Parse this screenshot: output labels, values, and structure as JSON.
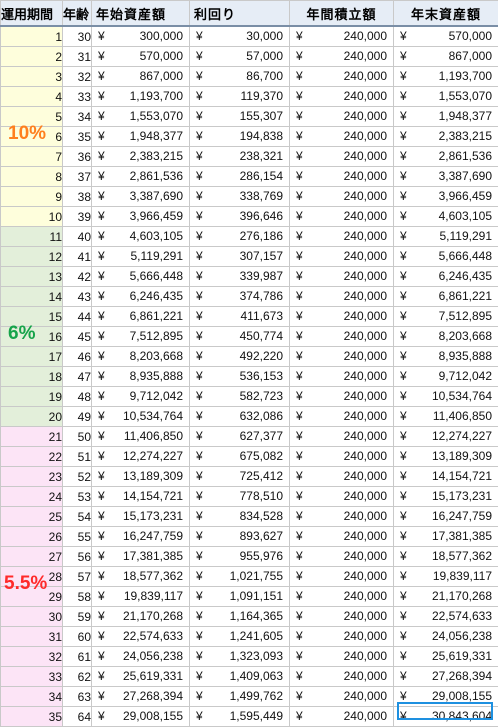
{
  "header": {
    "col_period": "運用期間",
    "col_age": "年齢",
    "col_start_assets": "年始資産額",
    "col_return": "利回り",
    "col_annual_contribution": "年間積立額",
    "col_end_assets": "年末資産額"
  },
  "currency_symbol": "¥",
  "bands": [
    {
      "label": "10%",
      "color": "#ff7f1e",
      "background": "#fefedc",
      "from_row": 1,
      "to_row": 10
    },
    {
      "label": "6%",
      "color": "#16a34a",
      "background": "#e3efda",
      "from_row": 11,
      "to_row": 20
    },
    {
      "label": "5.5%",
      "color": "#ff2a2a",
      "background": "#fce4f6",
      "from_row": 21,
      "to_row": 35
    }
  ],
  "rows": [
    {
      "period": "1",
      "age": "30",
      "start": "300,000",
      "ret": "30,000",
      "contrib": "240,000",
      "end": "570,000"
    },
    {
      "period": "2",
      "age": "31",
      "start": "570,000",
      "ret": "57,000",
      "contrib": "240,000",
      "end": "867,000"
    },
    {
      "period": "3",
      "age": "32",
      "start": "867,000",
      "ret": "86,700",
      "contrib": "240,000",
      "end": "1,193,700"
    },
    {
      "period": "4",
      "age": "33",
      "start": "1,193,700",
      "ret": "119,370",
      "contrib": "240,000",
      "end": "1,553,070"
    },
    {
      "period": "5",
      "age": "34",
      "start": "1,553,070",
      "ret": "155,307",
      "contrib": "240,000",
      "end": "1,948,377"
    },
    {
      "period": "6",
      "age": "35",
      "start": "1,948,377",
      "ret": "194,838",
      "contrib": "240,000",
      "end": "2,383,215"
    },
    {
      "period": "7",
      "age": "36",
      "start": "2,383,215",
      "ret": "238,321",
      "contrib": "240,000",
      "end": "2,861,536"
    },
    {
      "period": "8",
      "age": "37",
      "start": "2,861,536",
      "ret": "286,154",
      "contrib": "240,000",
      "end": "3,387,690"
    },
    {
      "period": "9",
      "age": "38",
      "start": "3,387,690",
      "ret": "338,769",
      "contrib": "240,000",
      "end": "3,966,459"
    },
    {
      "period": "10",
      "age": "39",
      "start": "3,966,459",
      "ret": "396,646",
      "contrib": "240,000",
      "end": "4,603,105"
    },
    {
      "period": "11",
      "age": "40",
      "start": "4,603,105",
      "ret": "276,186",
      "contrib": "240,000",
      "end": "5,119,291"
    },
    {
      "period": "12",
      "age": "41",
      "start": "5,119,291",
      "ret": "307,157",
      "contrib": "240,000",
      "end": "5,666,448"
    },
    {
      "period": "13",
      "age": "42",
      "start": "5,666,448",
      "ret": "339,987",
      "contrib": "240,000",
      "end": "6,246,435"
    },
    {
      "period": "14",
      "age": "43",
      "start": "6,246,435",
      "ret": "374,786",
      "contrib": "240,000",
      "end": "6,861,221"
    },
    {
      "period": "15",
      "age": "44",
      "start": "6,861,221",
      "ret": "411,673",
      "contrib": "240,000",
      "end": "7,512,895"
    },
    {
      "period": "16",
      "age": "45",
      "start": "7,512,895",
      "ret": "450,774",
      "contrib": "240,000",
      "end": "8,203,668"
    },
    {
      "period": "17",
      "age": "46",
      "start": "8,203,668",
      "ret": "492,220",
      "contrib": "240,000",
      "end": "8,935,888"
    },
    {
      "period": "18",
      "age": "47",
      "start": "8,935,888",
      "ret": "536,153",
      "contrib": "240,000",
      "end": "9,712,042"
    },
    {
      "period": "19",
      "age": "48",
      "start": "9,712,042",
      "ret": "582,723",
      "contrib": "240,000",
      "end": "10,534,764"
    },
    {
      "period": "20",
      "age": "49",
      "start": "10,534,764",
      "ret": "632,086",
      "contrib": "240,000",
      "end": "11,406,850"
    },
    {
      "period": "21",
      "age": "50",
      "start": "11,406,850",
      "ret": "627,377",
      "contrib": "240,000",
      "end": "12,274,227"
    },
    {
      "period": "22",
      "age": "51",
      "start": "12,274,227",
      "ret": "675,082",
      "contrib": "240,000",
      "end": "13,189,309"
    },
    {
      "period": "23",
      "age": "52",
      "start": "13,189,309",
      "ret": "725,412",
      "contrib": "240,000",
      "end": "14,154,721"
    },
    {
      "period": "24",
      "age": "53",
      "start": "14,154,721",
      "ret": "778,510",
      "contrib": "240,000",
      "end": "15,173,231"
    },
    {
      "period": "25",
      "age": "54",
      "start": "15,173,231",
      "ret": "834,528",
      "contrib": "240,000",
      "end": "16,247,759"
    },
    {
      "period": "26",
      "age": "55",
      "start": "16,247,759",
      "ret": "893,627",
      "contrib": "240,000",
      "end": "17,381,385"
    },
    {
      "period": "27",
      "age": "56",
      "start": "17,381,385",
      "ret": "955,976",
      "contrib": "240,000",
      "end": "18,577,362"
    },
    {
      "period": "28",
      "age": "57",
      "start": "18,577,362",
      "ret": "1,021,755",
      "contrib": "240,000",
      "end": "19,839,117"
    },
    {
      "period": "29",
      "age": "58",
      "start": "19,839,117",
      "ret": "1,091,151",
      "contrib": "240,000",
      "end": "21,170,268"
    },
    {
      "period": "30",
      "age": "59",
      "start": "21,170,268",
      "ret": "1,164,365",
      "contrib": "240,000",
      "end": "22,574,633"
    },
    {
      "period": "31",
      "age": "60",
      "start": "22,574,633",
      "ret": "1,241,605",
      "contrib": "240,000",
      "end": "24,056,238"
    },
    {
      "period": "32",
      "age": "61",
      "start": "24,056,238",
      "ret": "1,323,093",
      "contrib": "240,000",
      "end": "25,619,331"
    },
    {
      "period": "33",
      "age": "62",
      "start": "25,619,331",
      "ret": "1,409,063",
      "contrib": "240,000",
      "end": "27,268,394"
    },
    {
      "period": "34",
      "age": "63",
      "start": "27,268,394",
      "ret": "1,499,762",
      "contrib": "240,000",
      "end": "29,008,155"
    },
    {
      "period": "35",
      "age": "64",
      "start": "29,008,155",
      "ret": "1,595,449",
      "contrib": "240,000",
      "end": "30,843,604"
    }
  ],
  "highlight": {
    "row": 35,
    "column": "end",
    "color": "#1e90e0"
  }
}
